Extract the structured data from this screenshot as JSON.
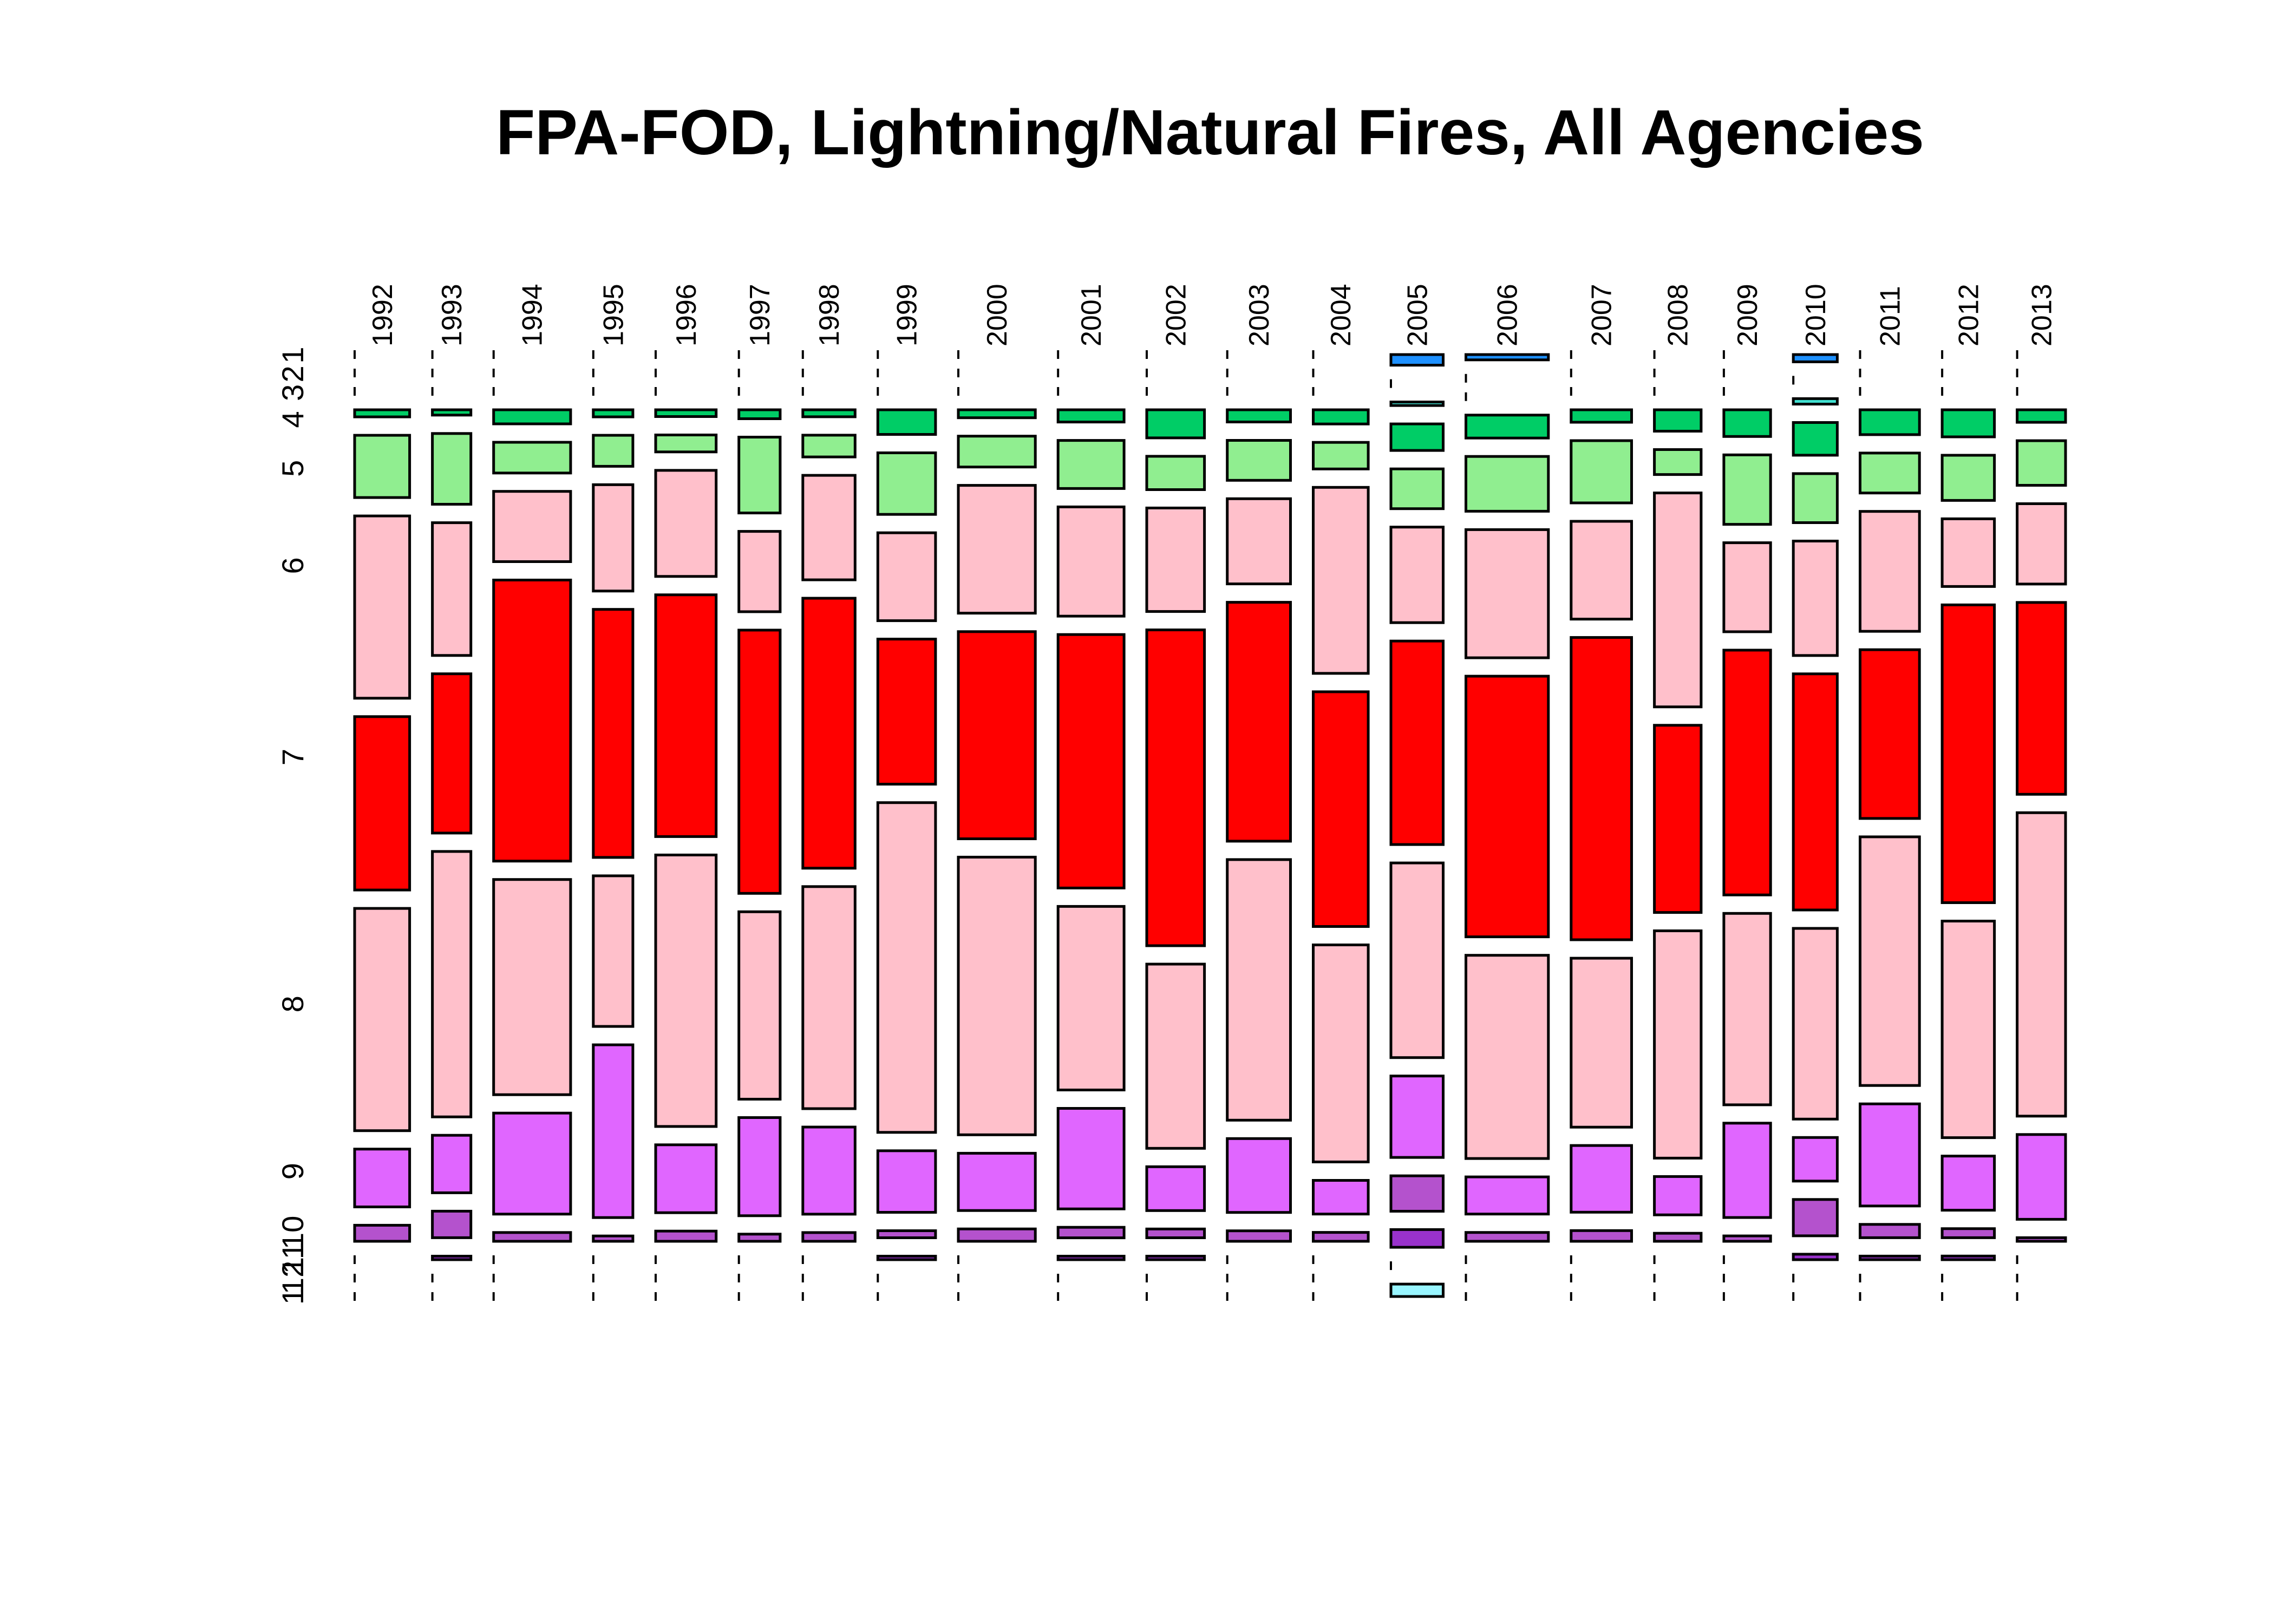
{
  "chart_data": {
    "type": "mosaic",
    "title": "FPA-FOD, Lightning/Natural Fires, All Agencies",
    "x_variable_categories": [
      "1992",
      "1993",
      "1994",
      "1995",
      "1996",
      "1997",
      "1998",
      "1999",
      "2000",
      "2001",
      "2002",
      "2003",
      "2004",
      "2005",
      "2006",
      "2007",
      "2008",
      "2009",
      "2010",
      "2011",
      "2012",
      "2013"
    ],
    "x_relative_widths": [
      1.0,
      0.7,
      1.4,
      0.72,
      1.1,
      0.75,
      0.95,
      1.05,
      1.4,
      1.2,
      1.05,
      1.15,
      1.0,
      0.95,
      1.5,
      1.1,
      0.85,
      0.85,
      0.8,
      1.08,
      0.95,
      0.88
    ],
    "y_variable_categories": [
      "1",
      "2",
      "3",
      "4",
      "5",
      "6",
      "7",
      "8",
      "9",
      "10",
      "11",
      "12",
      "13"
    ],
    "y_axis_labels": [
      {
        "label": "1",
        "at_category": "1"
      },
      {
        "label": "2",
        "at_category": "2"
      },
      {
        "label": "3",
        "at_category": "3"
      },
      {
        "label": "4",
        "at_category": "4"
      },
      {
        "label": "5",
        "at_category": "5"
      },
      {
        "label": "6",
        "at_category": "6"
      },
      {
        "label": "7",
        "at_category": "7"
      },
      {
        "label": "8",
        "at_category": "8"
      },
      {
        "label": "9",
        "at_category": "9"
      },
      {
        "label": "10",
        "at_category": "10"
      },
      {
        "label": "11",
        "at_category": "11"
      },
      {
        "label": "12",
        "at_category": "12"
      },
      {
        "label": "1",
        "at_category": "13"
      }
    ],
    "category_colors": {
      "1": "#1E90FF",
      "2": "#3A5FCD",
      "3": "#40E0D0",
      "4": "#00CD66",
      "5": "#90EE90",
      "6": "#FFC0CB",
      "7": "#FF0000",
      "8": "#FFC0CB",
      "9": "#E066FF",
      "10": "#B452CD",
      "11": "#9932CC",
      "12": "#8B008B",
      "13": "#98F5FF"
    },
    "proportions_by_year": {
      "1992": [
        0,
        0,
        0,
        0.008,
        0.07,
        0.205,
        0.195,
        0.25,
        0.065,
        0.018,
        0,
        0,
        0
      ],
      "1993": [
        0,
        0,
        0,
        0.006,
        0.08,
        0.15,
        0.18,
        0.3,
        0.065,
        0.03,
        0.004,
        0,
        0
      ],
      "1994": [
        0,
        0,
        0,
        0.016,
        0.035,
        0.08,
        0.32,
        0.245,
        0.115,
        0.01,
        0,
        0,
        0
      ],
      "1995": [
        0,
        0,
        0,
        0.008,
        0.035,
        0.12,
        0.28,
        0.17,
        0.195,
        0.006,
        0,
        0,
        0
      ],
      "1996": [
        0,
        0,
        0,
        0.008,
        0.02,
        0.125,
        0.285,
        0.32,
        0.08,
        0.012,
        0,
        0,
        0
      ],
      "1997": [
        0,
        0,
        0,
        0.01,
        0.085,
        0.09,
        0.295,
        0.21,
        0.11,
        0.008,
        0,
        0,
        0
      ],
      "1998": [
        0,
        0,
        0,
        0.008,
        0.025,
        0.12,
        0.31,
        0.255,
        0.1,
        0.01,
        0,
        0,
        0
      ],
      "1999": [
        0,
        0,
        0,
        0.028,
        0.07,
        0.1,
        0.165,
        0.375,
        0.07,
        0.008,
        0.004,
        0,
        0
      ],
      "2000": [
        0,
        0,
        0,
        0.009,
        0.035,
        0.145,
        0.235,
        0.315,
        0.065,
        0.014,
        0,
        0,
        0
      ],
      "2001": [
        0,
        0,
        0,
        0.014,
        0.055,
        0.125,
        0.29,
        0.21,
        0.115,
        0.012,
        0.004,
        0,
        0
      ],
      "2002": [
        0,
        0,
        0,
        0.032,
        0.038,
        0.118,
        0.36,
        0.21,
        0.05,
        0.01,
        0.004,
        0,
        0
      ],
      "2003": [
        0,
        0,
        0,
        0.014,
        0.046,
        0.098,
        0.275,
        0.3,
        0.085,
        0.012,
        0,
        0,
        0
      ],
      "2004": [
        0,
        0,
        0,
        0.016,
        0.03,
        0.21,
        0.265,
        0.245,
        0.038,
        0.01,
        0,
        0,
        0
      ],
      "2005": [
        0.012,
        0,
        0.004,
        0.03,
        0.045,
        0.108,
        0.23,
        0.22,
        0.092,
        0.04,
        0.02,
        0,
        0.014
      ],
      "2006": [
        0.006,
        0,
        0,
        0.026,
        0.062,
        0.145,
        0.295,
        0.23,
        0.042,
        0.01,
        0,
        0,
        0
      ],
      "2007": [
        0,
        0,
        0,
        0.014,
        0.07,
        0.11,
        0.34,
        0.19,
        0.075,
        0.012,
        0,
        0,
        0
      ],
      "2008": [
        0,
        0,
        0,
        0.024,
        0.028,
        0.24,
        0.21,
        0.255,
        0.043,
        0.009,
        0,
        0,
        0
      ],
      "2009": [
        0,
        0,
        0,
        0.03,
        0.078,
        0.1,
        0.275,
        0.215,
        0.106,
        0.006,
        0,
        0,
        0
      ],
      "2010": [
        0.008,
        0,
        0.006,
        0.036,
        0.054,
        0.126,
        0.26,
        0.21,
        0.048,
        0.04,
        0.006,
        0,
        0
      ],
      "2011": [
        0,
        0,
        0,
        0.028,
        0.045,
        0.135,
        0.19,
        0.28,
        0.115,
        0.015,
        0.004,
        0,
        0
      ],
      "2012": [
        0,
        0,
        0,
        0.03,
        0.05,
        0.075,
        0.33,
        0.24,
        0.06,
        0.01,
        0.004,
        0,
        0
      ],
      "2013": [
        0,
        0,
        0,
        0.014,
        0.05,
        0.09,
        0.215,
        0.34,
        0.095,
        0.004,
        0,
        0,
        0
      ]
    },
    "grid": false,
    "legend": "none"
  }
}
